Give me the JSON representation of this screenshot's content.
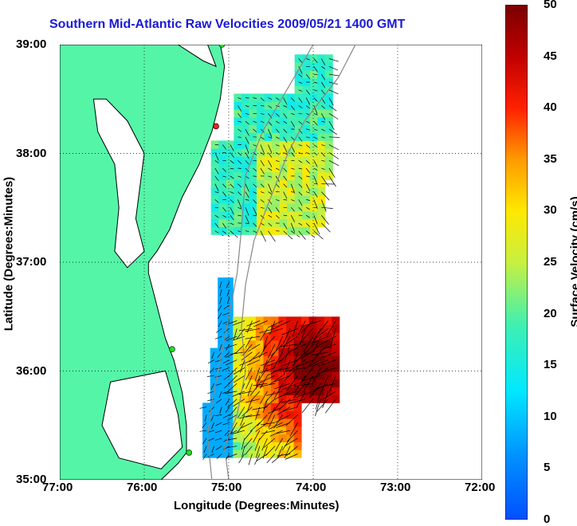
{
  "map": {
    "title": "Southern Mid-Atlantic Raw Velocities 2009/05/21 1400 GMT",
    "xlabel": "Longitude (Degrees:Minutes)",
    "ylabel": "Latitude (Degrees:Minutes)",
    "x_ticks": [
      "77:00",
      "76:00",
      "75:00",
      "74:00",
      "73:00",
      "72:00"
    ],
    "y_ticks": [
      "39:00",
      "38:00",
      "37:00",
      "36:00",
      "35:00"
    ],
    "lon_range": [
      -77,
      -72
    ],
    "lat_range": [
      35,
      39
    ],
    "colors": {
      "land": "#55f5a8",
      "ocean": "#ffffff",
      "title": "#1b1bd6",
      "station_green": "#22dd22",
      "station_red": "#ee2222"
    },
    "stations": [
      {
        "type": "green",
        "lon": -75.08,
        "lat": 39.0
      },
      {
        "type": "red",
        "lon": -75.15,
        "lat": 38.25
      },
      {
        "type": "green",
        "lon": -75.67,
        "lat": 36.2
      },
      {
        "type": "green",
        "lon": -75.47,
        "lat": 35.25
      }
    ]
  },
  "colorbar": {
    "label": "Surface Velocity (cm/s)",
    "ticks": [
      "0",
      "5",
      "10",
      "15",
      "20",
      "25",
      "30",
      "35",
      "40",
      "45",
      "50"
    ],
    "range": [
      0,
      50
    ]
  }
}
